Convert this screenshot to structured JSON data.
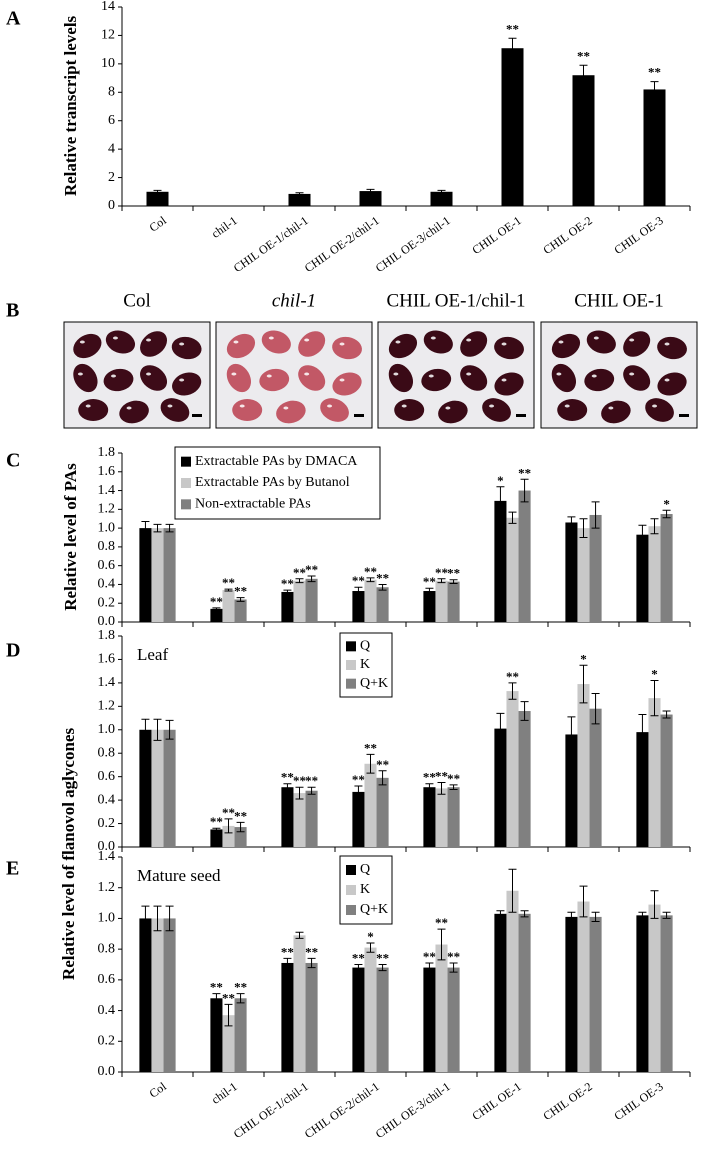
{
  "seed_images": {
    "panel": "B",
    "labels": [
      "Col",
      "chil-1",
      "CHIL OE-1/chil-1",
      "CHIL OE-1"
    ]
  },
  "chart_data": [
    {
      "panel": "A",
      "type": "bar",
      "ylabel": "Relative transcript  levels",
      "categories": [
        "Col",
        "chil-1",
        "CHIL OE-1/chil-1",
        "CHIL OE-2/chil-1",
        "CHIL OE-3/chil-1",
        "CHIL OE-1",
        "CHIL OE-2",
        "CHIL OE-3"
      ],
      "values": [
        1.0,
        0,
        0.85,
        1.05,
        1.0,
        11.1,
        9.2,
        8.2
      ],
      "errors": [
        0.1,
        0,
        0.08,
        0.12,
        0.1,
        0.7,
        0.7,
        0.55
      ],
      "annotations": [
        null,
        null,
        null,
        null,
        null,
        "**",
        "**",
        "**"
      ],
      "color": "#000000",
      "ylim": [
        0,
        14
      ],
      "yticks": [
        0,
        2,
        4,
        6,
        8,
        10,
        12,
        14
      ]
    },
    {
      "panel": "C",
      "type": "bar",
      "ylabel": "Relative  level of  PAs",
      "legend": "top-left",
      "ylim": [
        0,
        1.8
      ],
      "yticks": [
        {
          "value": 0,
          "label": "0.0"
        },
        0.2,
        0.4,
        0.6,
        0.8,
        {
          "value": 1,
          "label": "1.0"
        },
        1.2,
        1.4,
        1.6,
        1.8
      ],
      "series": [
        {
          "name": "Extractable PAs by DMACA",
          "color": "#000000",
          "values": [
            1.0,
            0.14,
            0.32,
            0.33,
            0.33,
            1.29,
            1.06,
            0.93
          ],
          "errors": [
            0.07,
            0.01,
            0.02,
            0.04,
            0.03,
            0.15,
            0.06,
            0.1
          ],
          "annotations": [
            null,
            "**",
            "**",
            "**",
            "**",
            "*",
            null,
            null
          ]
        },
        {
          "name": "Extractable PAs by Butanol",
          "color": "#c8c8c8",
          "values": [
            1.0,
            0.34,
            0.44,
            0.45,
            0.44,
            1.11,
            1.0,
            1.02
          ],
          "errors": [
            0.04,
            0.01,
            0.02,
            0.02,
            0.02,
            0.06,
            0.1,
            0.08
          ],
          "annotations": [
            null,
            "**",
            "**",
            "**",
            "**",
            null,
            null,
            null
          ]
        },
        {
          "name": "Non-extractable PAs",
          "color": "#808080",
          "values": [
            1.0,
            0.24,
            0.46,
            0.37,
            0.43,
            1.4,
            1.14,
            1.15
          ],
          "errors": [
            0.04,
            0.02,
            0.03,
            0.03,
            0.02,
            0.12,
            0.14,
            0.04
          ],
          "annotations": [
            null,
            "**",
            "**",
            "**",
            "**",
            "**",
            null,
            "*"
          ]
        }
      ]
    },
    {
      "panel": "D",
      "type": "bar",
      "annotation": "Leaf",
      "ylabel": "Relative level of flanovol aglycones",
      "legend": "top-center",
      "ylim": [
        0,
        1.8
      ],
      "yticks": [
        {
          "value": 0,
          "label": "0.0"
        },
        0.2,
        0.4,
        0.6,
        0.8,
        {
          "value": 1,
          "label": "1.0"
        },
        1.2,
        1.4,
        1.6,
        1.8
      ],
      "series": [
        {
          "name": "Q",
          "color": "#000000",
          "values": [
            1.0,
            0.15,
            0.51,
            0.47,
            0.51,
            1.01,
            0.96,
            0.98
          ],
          "errors": [
            0.09,
            0.01,
            0.03,
            0.05,
            0.03,
            0.13,
            0.15,
            0.15
          ],
          "annotations": [
            null,
            "**",
            "**",
            "**",
            "**",
            null,
            null,
            null
          ]
        },
        {
          "name": "K",
          "color": "#c8c8c8",
          "values": [
            1.0,
            0.18,
            0.46,
            0.71,
            0.5,
            1.33,
            1.39,
            1.27
          ],
          "errors": [
            0.09,
            0.06,
            0.05,
            0.08,
            0.05,
            0.07,
            0.16,
            0.15
          ],
          "annotations": [
            null,
            "**",
            "**",
            "**",
            "**",
            "**",
            "*",
            "*"
          ]
        },
        {
          "name": "Q+K",
          "color": "#808080",
          "values": [
            1.0,
            0.17,
            0.48,
            0.59,
            0.51,
            1.16,
            1.18,
            1.13
          ],
          "errors": [
            0.08,
            0.04,
            0.03,
            0.06,
            0.02,
            0.08,
            0.13,
            0.03
          ],
          "annotations": [
            null,
            "**",
            "**",
            "**",
            "**",
            null,
            null,
            null
          ]
        }
      ]
    },
    {
      "panel": "E",
      "type": "bar",
      "annotation": "Mature seed",
      "legend": "top-center",
      "categories": [
        "Col",
        "chil-1",
        "CHIL OE-1/chil-1",
        "CHIL OE-2/chil-1",
        "CHIL OE-3/chil-1",
        "CHIL OE-1",
        "CHIL OE-2",
        "CHIL OE-3"
      ],
      "ylim": [
        0,
        1.4
      ],
      "yticks": [
        {
          "value": 0,
          "label": "0.0"
        },
        0.2,
        0.4,
        0.6,
        0.8,
        {
          "value": 1,
          "label": "1.0"
        },
        1.2,
        1.4
      ],
      "series": [
        {
          "name": "Q",
          "color": "#000000",
          "values": [
            1.0,
            0.48,
            0.71,
            0.68,
            0.68,
            1.03,
            1.01,
            1.02
          ],
          "errors": [
            0.08,
            0.03,
            0.03,
            0.02,
            0.03,
            0.02,
            0.03,
            0.02
          ],
          "annotations": [
            null,
            "**",
            "**",
            "**",
            "**",
            null,
            null,
            null
          ]
        },
        {
          "name": "K",
          "color": "#c8c8c8",
          "values": [
            1.0,
            0.37,
            0.89,
            0.81,
            0.83,
            1.18,
            1.11,
            1.09
          ],
          "errors": [
            0.08,
            0.07,
            0.02,
            0.03,
            0.1,
            0.14,
            0.1,
            0.09
          ],
          "annotations": [
            null,
            "**",
            null,
            "*",
            "**",
            null,
            null,
            null
          ]
        },
        {
          "name": "Q+K",
          "color": "#808080",
          "values": [
            1.0,
            0.48,
            0.71,
            0.68,
            0.68,
            1.03,
            1.01,
            1.02
          ],
          "errors": [
            0.08,
            0.03,
            0.03,
            0.02,
            0.03,
            0.02,
            0.03,
            0.02
          ],
          "annotations": [
            null,
            "**",
            "**",
            "**",
            "**",
            null,
            null,
            null
          ]
        }
      ]
    }
  ]
}
